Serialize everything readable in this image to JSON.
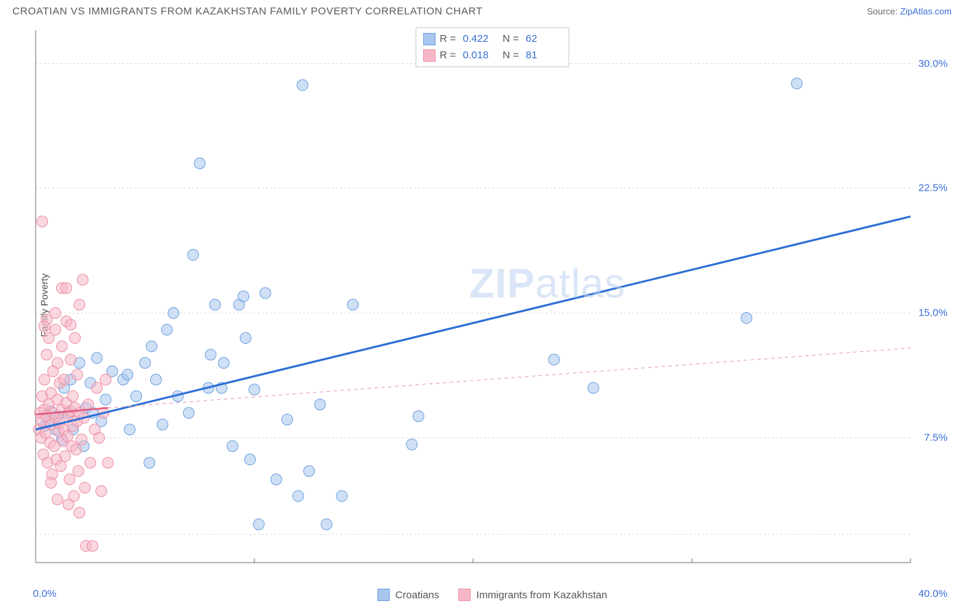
{
  "header": {
    "title": "CROATIAN VS IMMIGRANTS FROM KAZAKHSTAN FAMILY POVERTY CORRELATION CHART",
    "source_prefix": "Source: ",
    "source_link": "ZipAtlas.com"
  },
  "watermark": {
    "zip": "ZIP",
    "atlas": "atlas"
  },
  "chart": {
    "type": "scatter",
    "ylabel": "Family Poverty",
    "xlim": [
      0,
      40
    ],
    "ylim": [
      0,
      32
    ],
    "xtick_labels": [
      "0.0%",
      "40.0%"
    ],
    "xtick_positions": [
      0,
      40
    ],
    "ytick_labels": [
      "7.5%",
      "15.0%",
      "22.5%",
      "30.0%"
    ],
    "ytick_positions": [
      7.5,
      15,
      22.5,
      30
    ],
    "gridline_positions_y": [
      1.7,
      7.5,
      15,
      22.5,
      30
    ],
    "gridline_positions_x": [
      10,
      20,
      30,
      40
    ],
    "grid_color": "#d8d8d8",
    "axis_color": "#707070",
    "background_color": "#ffffff",
    "marker_radius": 8,
    "marker_opacity": 0.55,
    "series": [
      {
        "name": "Croatians",
        "fill_color": "#a8c6ee",
        "stroke_color": "#6fa0de",
        "R": "0.422",
        "N": "62",
        "trend": {
          "x1": 0,
          "y1": 8.0,
          "x2": 40,
          "y2": 20.8,
          "color": "#2e6fd6",
          "width": 3,
          "dash": "none"
        },
        "points": [
          [
            0.4,
            8.2
          ],
          [
            0.7,
            9.1
          ],
          [
            1.0,
            8.8
          ],
          [
            1.2,
            7.4
          ],
          [
            1.3,
            10.5
          ],
          [
            1.5,
            9.0
          ],
          [
            1.6,
            11.0
          ],
          [
            1.7,
            8.0
          ],
          [
            2.0,
            12.0
          ],
          [
            2.2,
            7.0
          ],
          [
            2.3,
            9.3
          ],
          [
            2.5,
            10.8
          ],
          [
            2.8,
            12.3
          ],
          [
            3.0,
            8.5
          ],
          [
            3.2,
            9.8
          ],
          [
            3.5,
            11.5
          ],
          [
            4.0,
            11.0
          ],
          [
            4.3,
            8.0
          ],
          [
            4.6,
            10.0
          ],
          [
            5.0,
            12.0
          ],
          [
            5.2,
            6.0
          ],
          [
            5.5,
            11.0
          ],
          [
            5.8,
            8.3
          ],
          [
            6.0,
            14.0
          ],
          [
            6.5,
            10.0
          ],
          [
            7.0,
            9.0
          ],
          [
            7.2,
            18.5
          ],
          [
            7.5,
            24.0
          ],
          [
            8.0,
            12.5
          ],
          [
            8.2,
            15.5
          ],
          [
            8.5,
            10.5
          ],
          [
            9.0,
            7.0
          ],
          [
            9.3,
            15.5
          ],
          [
            9.5,
            16.0
          ],
          [
            9.8,
            6.2
          ],
          [
            10.0,
            10.4
          ],
          [
            10.2,
            2.3
          ],
          [
            10.5,
            16.2
          ],
          [
            11.0,
            5.0
          ],
          [
            11.5,
            8.6
          ],
          [
            12.0,
            4.0
          ],
          [
            12.2,
            28.7
          ],
          [
            12.5,
            5.5
          ],
          [
            13.0,
            9.5
          ],
          [
            13.3,
            2.3
          ],
          [
            14.0,
            4.0
          ],
          [
            14.5,
            15.5
          ],
          [
            17.2,
            7.1
          ],
          [
            17.5,
            8.8
          ],
          [
            23.7,
            12.2
          ],
          [
            25.5,
            10.5
          ],
          [
            32.5,
            14.7
          ],
          [
            34.8,
            28.8
          ],
          [
            0.6,
            8.5
          ],
          [
            0.9,
            8.0
          ],
          [
            4.2,
            11.3
          ],
          [
            5.3,
            13.0
          ],
          [
            6.3,
            15.0
          ],
          [
            7.9,
            10.5
          ],
          [
            8.6,
            12.0
          ],
          [
            9.6,
            13.5
          ],
          [
            2.6,
            9.0
          ]
        ]
      },
      {
        "name": "Immigrants from Kazakhstan",
        "fill_color": "#f6b8c6",
        "stroke_color": "#ee8fa6",
        "R": "0.018",
        "N": "81",
        "trend_solid": {
          "x1": 0,
          "y1": 8.9,
          "x2": 3.3,
          "y2": 9.3,
          "color": "#e05a7e",
          "width": 2.5
        },
        "trend_dash": {
          "x1": 3.3,
          "y1": 9.3,
          "x2": 40,
          "y2": 12.9,
          "color": "#eaa8b8",
          "width": 1.2,
          "dash": "5,5"
        },
        "points": [
          [
            0.15,
            8.0
          ],
          [
            0.2,
            9.0
          ],
          [
            0.25,
            7.5
          ],
          [
            0.3,
            8.5
          ],
          [
            0.3,
            10.0
          ],
          [
            0.35,
            6.5
          ],
          [
            0.4,
            9.2
          ],
          [
            0.4,
            11.0
          ],
          [
            0.45,
            7.8
          ],
          [
            0.5,
            8.8
          ],
          [
            0.5,
            12.5
          ],
          [
            0.55,
            6.0
          ],
          [
            0.6,
            9.5
          ],
          [
            0.6,
            13.5
          ],
          [
            0.65,
            7.2
          ],
          [
            0.7,
            8.3
          ],
          [
            0.7,
            10.2
          ],
          [
            0.75,
            5.3
          ],
          [
            0.8,
            9.0
          ],
          [
            0.8,
            11.5
          ],
          [
            0.85,
            7.0
          ],
          [
            0.9,
            8.7
          ],
          [
            0.9,
            14.0
          ],
          [
            0.95,
            6.2
          ],
          [
            1.0,
            9.8
          ],
          [
            1.0,
            12.0
          ],
          [
            1.05,
            7.9
          ],
          [
            1.1,
            8.4
          ],
          [
            1.1,
            10.8
          ],
          [
            1.15,
            5.8
          ],
          [
            1.2,
            9.2
          ],
          [
            1.2,
            13.0
          ],
          [
            1.25,
            7.3
          ],
          [
            1.3,
            8.0
          ],
          [
            1.3,
            11.0
          ],
          [
            1.35,
            6.4
          ],
          [
            1.4,
            9.6
          ],
          [
            1.4,
            14.5
          ],
          [
            1.45,
            7.6
          ],
          [
            1.5,
            8.9
          ],
          [
            1.5,
            3.5
          ],
          [
            1.55,
            5.0
          ],
          [
            1.6,
            9.1
          ],
          [
            1.6,
            12.2
          ],
          [
            1.65,
            7.0
          ],
          [
            1.7,
            8.2
          ],
          [
            1.7,
            10.0
          ],
          [
            1.75,
            4.0
          ],
          [
            1.8,
            9.3
          ],
          [
            1.8,
            13.5
          ],
          [
            1.85,
            6.8
          ],
          [
            1.9,
            8.5
          ],
          [
            1.9,
            11.3
          ],
          [
            1.95,
            5.5
          ],
          [
            2.0,
            9.0
          ],
          [
            2.0,
            3.0
          ],
          [
            2.1,
            7.4
          ],
          [
            2.15,
            17.0
          ],
          [
            2.2,
            8.7
          ],
          [
            2.25,
            4.5
          ],
          [
            2.3,
            1.0
          ],
          [
            2.4,
            9.5
          ],
          [
            2.5,
            6.0
          ],
          [
            2.6,
            1.0
          ],
          [
            2.7,
            8.0
          ],
          [
            2.8,
            10.5
          ],
          [
            2.9,
            7.5
          ],
          [
            3.0,
            4.3
          ],
          [
            3.1,
            9.0
          ],
          [
            3.2,
            11.0
          ],
          [
            3.3,
            6.0
          ],
          [
            0.3,
            20.5
          ],
          [
            1.2,
            16.5
          ],
          [
            1.4,
            16.5
          ],
          [
            2.0,
            15.5
          ],
          [
            0.5,
            14.6
          ],
          [
            0.4,
            14.2
          ],
          [
            0.9,
            15.0
          ],
          [
            1.6,
            14.3
          ],
          [
            0.7,
            4.8
          ],
          [
            1.0,
            3.8
          ]
        ]
      }
    ],
    "legend_bottom": [
      {
        "label": "Croatians",
        "fill": "#a8c6ee",
        "stroke": "#6fa0de"
      },
      {
        "label": "Immigrants from Kazakhstan",
        "fill": "#f6b8c6",
        "stroke": "#ee8fa6"
      }
    ]
  }
}
